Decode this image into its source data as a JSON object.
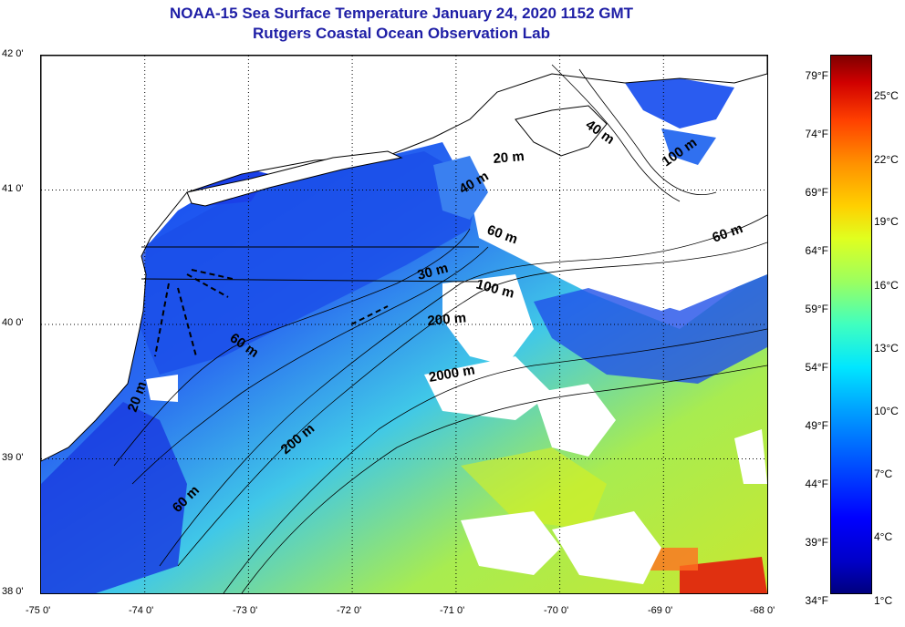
{
  "title": {
    "line1": "NOAA-15 Sea Surface Temperature January 24, 2020 1152 GMT",
    "line2": "Rutgers Coastal Ocean Observation Lab"
  },
  "map": {
    "lon_labels": [
      "-75 0'",
      "-74 0'",
      "-73 0'",
      "-72 0'",
      "-71 0'",
      "-70 0'",
      "-69 0'",
      "-68 0'"
    ],
    "lat_labels": [
      "42 0'",
      "41 0'",
      "40 0'",
      "39 0'",
      "38 0'"
    ],
    "depth_labels": [
      "40 m",
      "20 m",
      "100 m",
      "40 m",
      "60 m",
      "60 m",
      "30 m",
      "100 m",
      "200 m",
      "60 m",
      "2000 m",
      "20 m",
      "200 m",
      "60 m"
    ]
  },
  "colorbar": {
    "fahrenheit_labels": [
      "79°F",
      "74°F",
      "69°F",
      "64°F",
      "59°F",
      "54°F",
      "49°F",
      "44°F",
      "39°F",
      "34°F"
    ],
    "celsius_labels": [
      "25°C",
      "22°C",
      "19°C",
      "16°C",
      "13°C",
      "10°C",
      "7°C",
      "4°C",
      "1°C"
    ],
    "range_celsius": [
      1,
      27
    ],
    "colors": [
      "#00007f",
      "#0000ff",
      "#00a0ff",
      "#40ffbf",
      "#e0ff1f",
      "#ff9000",
      "#d00000",
      "#7f0000"
    ]
  }
}
